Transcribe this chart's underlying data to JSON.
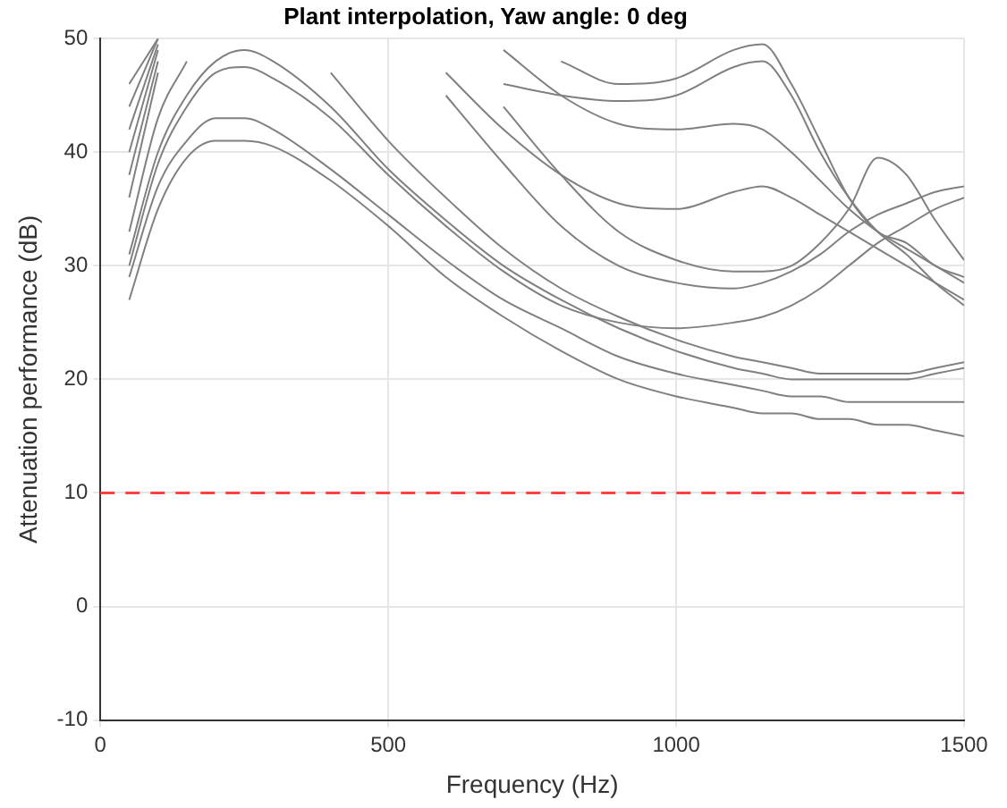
{
  "chart_data": {
    "type": "line",
    "title": "Plant interpolation, Yaw angle: 0 deg",
    "xlabel": "Frequency (Hz)",
    "ylabel": "Attenuation performance (dB)",
    "x": [
      50,
      100,
      150,
      200,
      250,
      300,
      400,
      500,
      600,
      700,
      800,
      900,
      1000,
      1100,
      1150,
      1200,
      1250,
      1300,
      1350,
      1400,
      1450,
      1500
    ],
    "series": [
      {
        "color": "#808080",
        "values": [
          27,
          35,
          39.5,
          41,
          41,
          40.5,
          37.5,
          33.5,
          29,
          25.5,
          22.5,
          20,
          18.5,
          17.5,
          17,
          17,
          16.5,
          16.5,
          16,
          16,
          15.5,
          15
        ]
      },
      {
        "color": "#808080",
        "values": [
          29,
          37,
          41,
          43,
          43,
          42,
          38.5,
          34.5,
          30.5,
          27,
          24.5,
          22,
          20.5,
          19.5,
          19,
          18.5,
          18.5,
          18,
          18,
          18,
          18,
          18
        ]
      },
      {
        "color": "#808080",
        "values": [
          31,
          40,
          45,
          48,
          49,
          48,
          44,
          38.5,
          34,
          30,
          27,
          24.5,
          22.5,
          21,
          20.5,
          20,
          20,
          20,
          20,
          20,
          20.5,
          21
        ]
      },
      {
        "color": "#808080",
        "values": [
          33,
          43,
          48,
          null,
          null,
          null,
          47,
          41,
          36,
          31.5,
          28,
          25.5,
          23.5,
          22,
          21.5,
          21,
          20.5,
          20.5,
          20.5,
          20.5,
          21,
          21.5
        ]
      },
      {
        "color": "#808080",
        "values": [
          30,
          39,
          44,
          47,
          47.5,
          46.5,
          43,
          38,
          33.5,
          29.5,
          26.5,
          25,
          24.5,
          25,
          25.5,
          26.5,
          28,
          30,
          32,
          33.5,
          35,
          36
        ]
      },
      {
        "color": "#808080",
        "values": [
          36,
          47,
          null,
          null,
          null,
          null,
          null,
          null,
          45,
          39,
          33.5,
          30,
          28.5,
          28,
          28.5,
          29.5,
          31,
          33,
          34.5,
          35.5,
          36.5,
          37
        ]
      },
      {
        "color": "#808080",
        "values": [
          38,
          48,
          null,
          null,
          null,
          null,
          null,
          null,
          null,
          44,
          38,
          33,
          30.5,
          29.5,
          29.5,
          30,
          32,
          35,
          39.5,
          38,
          34,
          30.5
        ]
      },
      {
        "color": "#808080",
        "values": [
          40,
          49,
          null,
          null,
          null,
          null,
          null,
          null,
          null,
          46,
          45,
          44.5,
          45,
          47.5,
          48,
          45,
          40,
          36,
          33,
          31,
          28.5,
          26.5
        ]
      },
      {
        "color": "#808080",
        "values": [
          42,
          49.5,
          null,
          null,
          null,
          null,
          null,
          null,
          47,
          42,
          38,
          35.5,
          35,
          36.5,
          37,
          36,
          34.5,
          33,
          31.5,
          30,
          28.5,
          27
        ]
      },
      {
        "color": "#808080",
        "values": [
          44,
          50,
          null,
          null,
          null,
          null,
          null,
          null,
          null,
          49,
          45,
          42.5,
          42,
          42.5,
          42,
          40,
          37.5,
          35,
          33,
          31.5,
          30,
          28.5
        ]
      },
      {
        "color": "#808080",
        "values": [
          46,
          50,
          null,
          null,
          null,
          null,
          null,
          null,
          null,
          null,
          48,
          46,
          46.5,
          49,
          49.5,
          46,
          41,
          36,
          33,
          32,
          30,
          29
        ]
      }
    ],
    "xlim": [
      0,
      1500
    ],
    "xticks": [
      0,
      500,
      1000,
      1500
    ],
    "ylim": [
      -10,
      50
    ],
    "yticks": [
      -10,
      0,
      10,
      20,
      30,
      40,
      50
    ],
    "ref_lines": [
      {
        "axis": "y",
        "value": 10,
        "color": "#ff4040",
        "line_style": "dashed"
      }
    ],
    "grid": true,
    "legend": false
  }
}
